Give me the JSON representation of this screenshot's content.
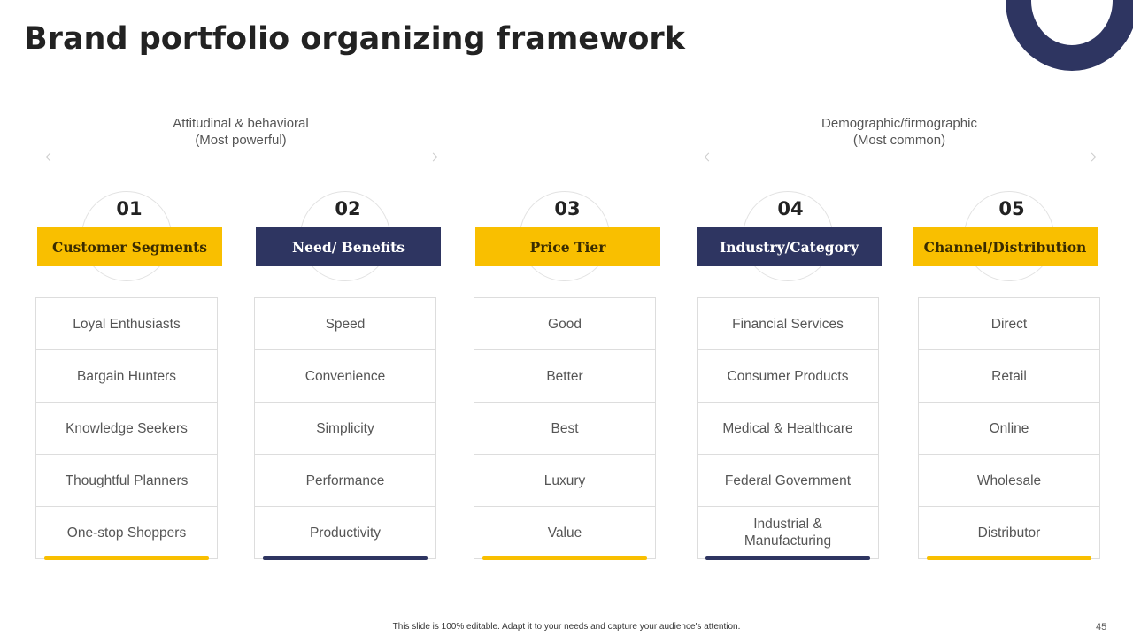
{
  "title": "Brand portfolio organizing framework",
  "groups": [
    {
      "line1": "Attitudinal & behavioral",
      "line2": "(Most powerful)"
    },
    {
      "line1": "Demographic/firmographic",
      "line2": "(Most common)"
    }
  ],
  "columns": [
    {
      "num": "01",
      "label": "Customer Segments",
      "items": [
        "Loyal Enthusiasts",
        "Bargain Hunters",
        "Knowledge Seekers",
        "Thoughtful  Planners",
        "One-stop  Shoppers"
      ]
    },
    {
      "num": "02",
      "label": "Need/ Benefits",
      "items": [
        "Speed",
        "Convenience",
        "Simplicity",
        "Performance",
        "Productivity"
      ]
    },
    {
      "num": "03",
      "label": "Price Tier",
      "items": [
        "Good",
        "Better",
        "Best",
        "Luxury",
        "Value"
      ]
    },
    {
      "num": "04",
      "label": "Industry/Category",
      "items": [
        "Financial Services",
        "Consumer Products",
        "Medical & Healthcare",
        "Federal Government",
        "Industrial  & Manufacturing"
      ]
    },
    {
      "num": "05",
      "label": "Channel/Distribution",
      "items": [
        "Direct",
        "Retail",
        "Online",
        "Wholesale",
        "Distributor"
      ]
    }
  ],
  "colors": {
    "yellow": "#f9bf00",
    "navy": "#2e3561"
  },
  "footer": "This slide is 100% editable. Adapt it to your needs and capture your audience's attention.",
  "page_number": "45"
}
